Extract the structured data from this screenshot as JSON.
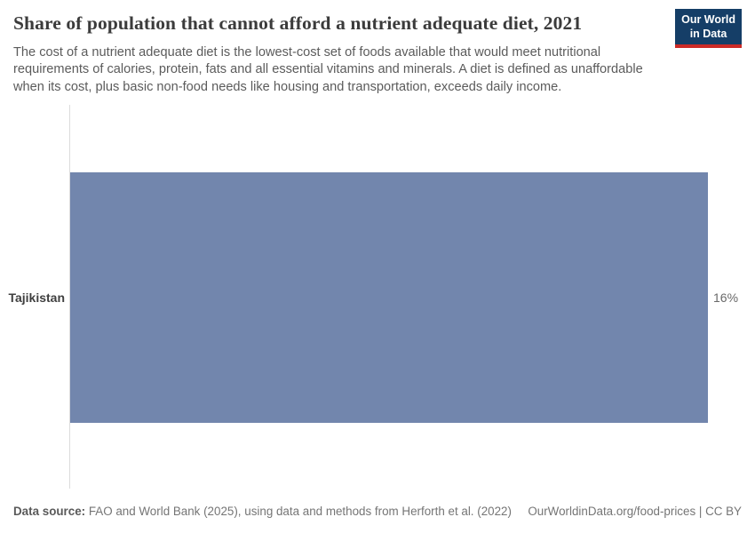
{
  "header": {
    "title": "Share of population that cannot afford a nutrient adequate diet, 2021",
    "subtitle": "The cost of a nutrient adequate diet is the lowest-cost set of foods available that would meet nutritional requirements of calories, protein, fats and all essential vitamins and minerals. A diet is defined as unaffordable when its cost, plus basic non-food needs like housing and transportation, exceeds daily income.",
    "logo": {
      "line1": "Our World",
      "line2": "in Data",
      "bg_color": "#153e67",
      "accent_color": "#cc2a26"
    }
  },
  "chart_data": {
    "type": "bar",
    "orientation": "horizontal",
    "title": "Share of population that cannot afford a nutrient adequate diet, 2021",
    "categories": [
      "Tajikistan"
    ],
    "values": [
      16
    ],
    "value_labels": [
      "16%"
    ],
    "unit": "%",
    "xlim": [
      0,
      16
    ],
    "grid": false,
    "legend": "none",
    "bar_color": "#7286ad",
    "axis_color": "#dcdcdc"
  },
  "footer": {
    "source_label": "Data source:",
    "source_text": " FAO and World Bank (2025), using data and methods from Herforth et al. (2022)",
    "rights": "OurWorldinData.org/food-prices | CC BY"
  }
}
